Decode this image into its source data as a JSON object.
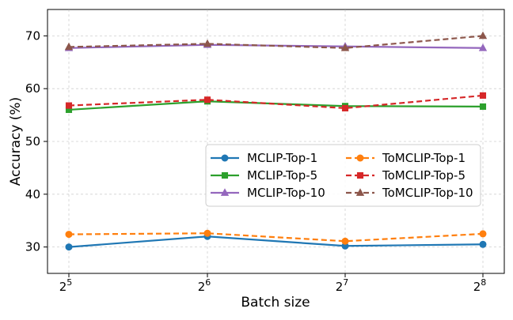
{
  "chart_data": {
    "type": "line",
    "title": "",
    "xlabel": "Batch size",
    "ylabel": "Accuracy (%)",
    "x_base": "2",
    "x_exponents": [
      "5",
      "6",
      "7",
      "8"
    ],
    "ylim": [
      25,
      75
    ],
    "yticks": [
      "30",
      "40",
      "50",
      "60",
      "70"
    ],
    "grid": true,
    "legend_position": "center-right",
    "series": [
      {
        "name": "MCLIP-Top-1",
        "values": [
          30.0,
          32.0,
          30.2,
          30.5
        ],
        "color": "#1f77b4",
        "marker": "circle",
        "dashed": false
      },
      {
        "name": "ToMCLIP-Top-1",
        "values": [
          32.4,
          32.6,
          31.1,
          32.5
        ],
        "color": "#ff7f0e",
        "marker": "circle",
        "dashed": true
      },
      {
        "name": "MCLIP-Top-5",
        "values": [
          56.0,
          57.6,
          56.7,
          56.6
        ],
        "color": "#2ca02c",
        "marker": "square",
        "dashed": false
      },
      {
        "name": "ToMCLIP-Top-5",
        "values": [
          56.8,
          57.9,
          56.3,
          58.7
        ],
        "color": "#d62728",
        "marker": "square",
        "dashed": true
      },
      {
        "name": "MCLIP-Top-10",
        "values": [
          67.7,
          68.3,
          68.0,
          67.7
        ],
        "color": "#9467bd",
        "marker": "triangle",
        "dashed": false
      },
      {
        "name": "ToMCLIP-Top-10",
        "values": [
          67.9,
          68.5,
          67.7,
          70.0
        ],
        "color": "#8c564b",
        "marker": "triangle",
        "dashed": true
      }
    ],
    "legend_order": [
      "MCLIP-Top-1",
      "ToMCLIP-Top-1",
      "MCLIP-Top-5",
      "ToMCLIP-Top-5",
      "MCLIP-Top-10",
      "ToMCLIP-Top-10"
    ]
  }
}
